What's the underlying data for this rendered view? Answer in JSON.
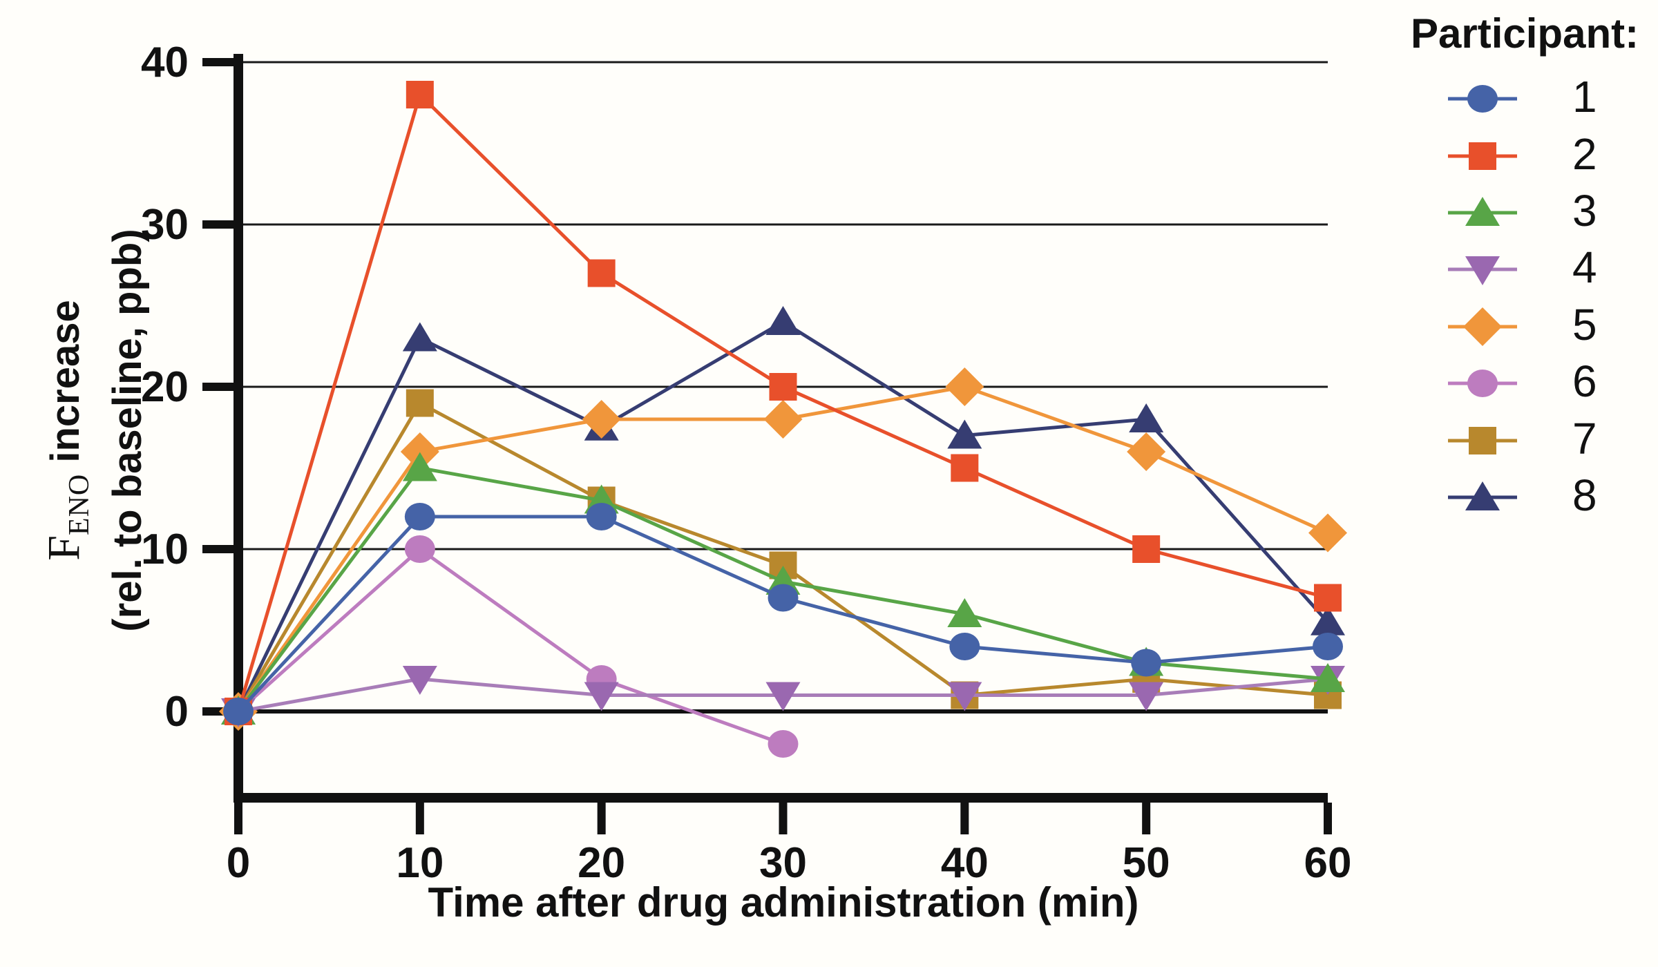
{
  "chart_data": {
    "type": "line",
    "x": [
      0,
      10,
      20,
      30,
      40,
      50,
      60
    ],
    "series": [
      {
        "name": "1",
        "marker": "circle",
        "color": "#4563a7",
        "values": [
          0,
          12,
          12,
          7,
          4,
          3,
          4
        ]
      },
      {
        "name": "2",
        "marker": "square",
        "color": "#e8502b",
        "values": [
          0,
          38,
          27,
          20,
          15,
          10,
          7
        ]
      },
      {
        "name": "3",
        "marker": "triangle-up",
        "color": "#58a547",
        "values": [
          0,
          15,
          13,
          8,
          6,
          3,
          2
        ]
      },
      {
        "name": "4",
        "marker": "triangle-down",
        "color": "#9a68b0",
        "line_color": "#a87db8",
        "values": [
          0,
          2,
          1,
          1,
          1,
          1,
          2
        ]
      },
      {
        "name": "5",
        "marker": "diamond",
        "color": "#f0963b",
        "values": [
          0,
          16,
          18,
          18,
          20,
          16,
          11
        ]
      },
      {
        "name": "6",
        "marker": "circle",
        "color": "#bd7cbf",
        "values": [
          0,
          10,
          2,
          -2,
          null,
          null,
          null
        ]
      },
      {
        "name": "7",
        "marker": "square",
        "color": "#b8882d",
        "values": [
          0,
          19,
          13,
          9,
          1,
          2,
          1
        ]
      },
      {
        "name": "8",
        "marker": "triangle-up",
        "color": "#363d72",
        "values": [
          0,
          23,
          17.5,
          24,
          17,
          18,
          5.5
        ]
      }
    ],
    "xlabel": "Time after drug administration (min)",
    "ylabel": "F_ENO increase (rel. to baseline, ppb)",
    "xticks": [
      0,
      10,
      20,
      30,
      40,
      50,
      60
    ],
    "yticks": [
      0,
      10,
      20,
      30,
      40
    ],
    "xlim": [
      0,
      60
    ],
    "ylim": [
      -5.3,
      40
    ],
    "grid": true,
    "legend_position": "right",
    "legend_title": "Participant:"
  },
  "axes": {
    "x": {
      "label": "Time after drug administration (min)"
    },
    "y": {
      "label_f": "F",
      "label_sub": "ENO",
      "label_rest": " increase",
      "label_line2": "(rel. to baseline, ppb)"
    }
  },
  "legend": {
    "title": "Participant:",
    "items": [
      {
        "label": "1"
      },
      {
        "label": "2"
      },
      {
        "label": "3"
      },
      {
        "label": "4"
      },
      {
        "label": "5"
      },
      {
        "label": "6"
      },
      {
        "label": "7"
      },
      {
        "label": "8"
      }
    ]
  },
  "colors": {
    "axis": "#111111",
    "grid": "#1a1a1a",
    "background": "#fffefa"
  }
}
